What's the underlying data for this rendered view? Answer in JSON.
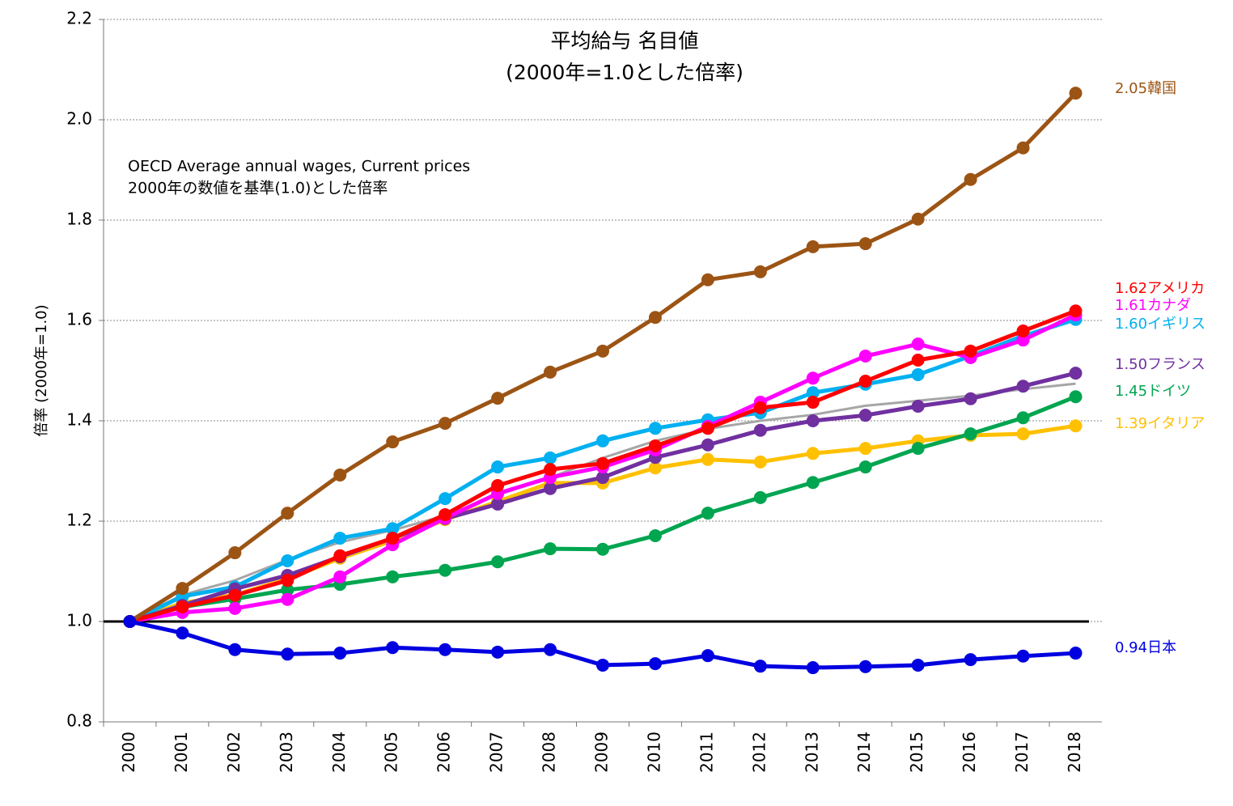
{
  "chart_data": {
    "type": "line",
    "title": "平均給与 名目値",
    "subtitle": "(2000年=1.0とした倍率)",
    "annotation": [
      "OECD Average annual wages, Current prices",
      "2000年の数値を基準(1.0)とした倍率"
    ],
    "y_label": "倍率 (2000年=1.0)",
    "categories": [
      "2000",
      "2001",
      "2002",
      "2003",
      "2004",
      "2005",
      "2006",
      "2007",
      "2008",
      "2009",
      "2010",
      "2011",
      "2012",
      "2013",
      "2014",
      "2015",
      "2016",
      "2017",
      "2018"
    ],
    "ylim": [
      0.8,
      2.2
    ],
    "yticks": [
      0.8,
      {
        "value": 1,
        "label": "1.0"
      },
      1.2,
      1.4,
      1.6,
      1.8,
      {
        "value": 2,
        "label": "2.0"
      },
      2.2
    ],
    "grid": true,
    "baseline": 1,
    "series": [
      {
        "color": "#a6a6a6",
        "values": [
          1.0,
          1.053,
          1.082,
          1.123,
          1.158,
          1.182,
          1.211,
          1.252,
          1.287,
          1.326,
          1.36,
          1.384,
          1.4,
          1.412,
          1.43,
          1.44,
          1.45,
          1.463,
          1.474
        ]
      },
      {
        "name": "イタリア",
        "color": "#ffc000",
        "values": [
          1.0,
          1.037,
          1.053,
          1.085,
          1.126,
          1.161,
          1.203,
          1.239,
          1.276,
          1.276,
          1.306,
          1.323,
          1.318,
          1.335,
          1.345,
          1.36,
          1.371,
          1.374,
          1.39
        ],
        "value_labels": [
          null,
          null,
          null,
          null,
          null,
          null,
          null,
          null,
          null,
          null,
          null,
          null,
          null,
          null,
          null,
          null,
          null,
          null,
          "1.39"
        ]
      },
      {
        "name": "ドイツ",
        "color": "#00a550",
        "values": [
          1.0,
          1.029,
          1.045,
          1.063,
          1.074,
          1.089,
          1.102,
          1.119,
          1.145,
          1.144,
          1.171,
          1.216,
          1.247,
          1.277,
          1.308,
          1.345,
          1.374,
          1.406,
          1.448
        ],
        "value_labels": [
          null,
          null,
          null,
          null,
          null,
          null,
          null,
          null,
          null,
          null,
          null,
          null,
          null,
          null,
          null,
          null,
          null,
          null,
          "1.45"
        ]
      },
      {
        "name": "イギリス",
        "color": "#00b0f0",
        "values": [
          1.0,
          1.05,
          1.069,
          1.121,
          1.166,
          1.185,
          1.245,
          1.308,
          1.326,
          1.36,
          1.385,
          1.402,
          1.416,
          1.456,
          1.473,
          1.492,
          1.529,
          1.569,
          1.602
        ],
        "value_labels": [
          null,
          null,
          null,
          null,
          null,
          null,
          null,
          null,
          null,
          null,
          null,
          null,
          null,
          null,
          null,
          null,
          null,
          null,
          "1.60"
        ]
      },
      {
        "name": "フランス",
        "color": "#7030a0",
        "values": [
          1.0,
          1.032,
          1.065,
          1.092,
          1.129,
          1.166,
          1.205,
          1.234,
          1.265,
          1.287,
          1.327,
          1.352,
          1.381,
          1.4,
          1.411,
          1.429,
          1.444,
          1.469,
          1.495
        ],
        "value_labels": [
          null,
          null,
          null,
          null,
          null,
          null,
          null,
          null,
          null,
          null,
          null,
          null,
          null,
          null,
          null,
          null,
          null,
          null,
          "1.50"
        ]
      },
      {
        "name": "カナダ",
        "color": "#ff00ff",
        "values": [
          1.0,
          1.018,
          1.026,
          1.044,
          1.089,
          1.153,
          1.206,
          1.255,
          1.287,
          1.308,
          1.342,
          1.389,
          1.437,
          1.485,
          1.529,
          1.553,
          1.526,
          1.561,
          1.611
        ],
        "value_labels": [
          null,
          null,
          null,
          null,
          null,
          null,
          null,
          null,
          null,
          null,
          null,
          null,
          null,
          null,
          null,
          null,
          null,
          null,
          "1.61"
        ]
      },
      {
        "name": "アメリカ",
        "color": "#ff0000",
        "values": [
          1.0,
          1.029,
          1.052,
          1.082,
          1.131,
          1.166,
          1.213,
          1.271,
          1.303,
          1.315,
          1.35,
          1.385,
          1.426,
          1.437,
          1.479,
          1.521,
          1.539,
          1.579,
          1.619
        ],
        "value_labels": [
          null,
          null,
          null,
          null,
          null,
          null,
          null,
          null,
          null,
          null,
          null,
          null,
          null,
          null,
          null,
          null,
          null,
          null,
          "1.62"
        ]
      },
      {
        "name": "韓国",
        "color": "#9c5414",
        "values": [
          1.0,
          1.066,
          1.137,
          1.216,
          1.292,
          1.358,
          1.395,
          1.445,
          1.497,
          1.539,
          1.606,
          1.681,
          1.697,
          1.747,
          1.753,
          1.802,
          1.881,
          1.944,
          2.053
        ],
        "value_labels": [
          null,
          null,
          null,
          null,
          null,
          null,
          null,
          null,
          null,
          null,
          null,
          null,
          null,
          null,
          null,
          null,
          null,
          null,
          "2.05"
        ]
      },
      {
        "name": "日本",
        "color": "#0000e0",
        "values": [
          1.0,
          0.977,
          0.944,
          0.935,
          0.937,
          0.948,
          0.944,
          0.939,
          0.944,
          0.913,
          0.916,
          0.932,
          0.911,
          0.908,
          0.91,
          0.913,
          0.924,
          0.931,
          0.937
        ],
        "value_labels": [
          null,
          null,
          null,
          null,
          null,
          null,
          null,
          null,
          null,
          null,
          null,
          null,
          null,
          null,
          null,
          null,
          null,
          null,
          "0.94"
        ]
      }
    ]
  }
}
